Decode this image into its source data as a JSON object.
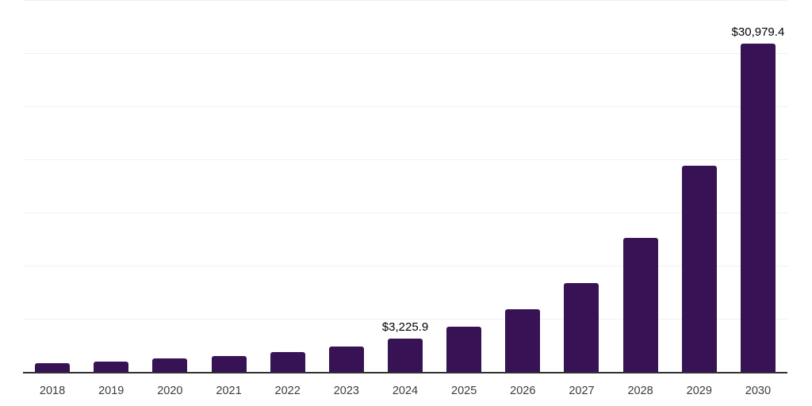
{
  "chart_data": {
    "type": "bar",
    "title": "",
    "xlabel": "",
    "ylabel": "",
    "categories": [
      "2018",
      "2019",
      "2020",
      "2021",
      "2022",
      "2023",
      "2024",
      "2025",
      "2026",
      "2027",
      "2028",
      "2029",
      "2030"
    ],
    "values": [
      920,
      1070,
      1310,
      1600,
      1970,
      2470,
      3225.9,
      4300,
      5950,
      8400,
      12700,
      19450,
      30979.4
    ],
    "data_labels": {
      "2024": "$3,225.9",
      "2030": "$30,979.4"
    },
    "ylim": [
      0,
      35000
    ],
    "gridline_step": 5000,
    "grid": true,
    "legend": false,
    "y_axis_tick_labels_visible": false,
    "bar_color": "#371254",
    "gridline_color": "#f0f0f0",
    "axis_line_color": "#303030",
    "label_color": "#000000",
    "tick_label_color": "#3d3d3d",
    "background_color": "#ffffff"
  }
}
